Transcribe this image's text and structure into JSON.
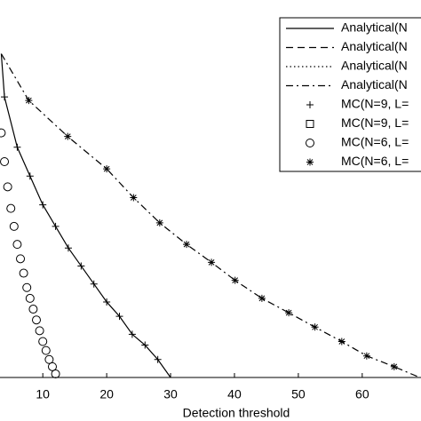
{
  "chart_data": {
    "type": "line",
    "x_label": "Detection threshold",
    "xlim": [
      3.3,
      69.2
    ],
    "ylim": [
      0,
      1
    ],
    "xticks": [
      10,
      20,
      30,
      40,
      50,
      60
    ],
    "series": [
      {
        "name": "Analytical(N",
        "style": "solid",
        "marker": "none",
        "color": "#000000",
        "x": [
          3.5,
          4,
          6,
          8,
          10,
          12,
          14,
          16,
          18,
          20,
          22,
          24,
          26,
          28,
          30
        ],
        "values": [
          0.9,
          0.78,
          0.64,
          0.56,
          0.48,
          0.42,
          0.36,
          0.31,
          0.26,
          0.21,
          0.17,
          0.12,
          0.09,
          0.05,
          0.0
        ]
      },
      {
        "name": "Analytical(N",
        "style": "dashed",
        "marker": "none",
        "color": "#000000",
        "x": [],
        "values": []
      },
      {
        "name": "Analytical(N",
        "style": "dotted",
        "marker": "none",
        "color": "#000000",
        "x": [],
        "values": []
      },
      {
        "name": "Analytical(N",
        "style": "dashdot",
        "marker": "none",
        "color": "#000000",
        "x": [
          3.5,
          7.8,
          13.9,
          20,
          24.2,
          28.3,
          32.5,
          36.4,
          40.1,
          44.3,
          48.5,
          52.6,
          56.8,
          60.7,
          65,
          69
        ],
        "values": [
          0.9,
          0.77,
          0.67,
          0.58,
          0.5,
          0.43,
          0.37,
          0.32,
          0.27,
          0.22,
          0.18,
          0.14,
          0.1,
          0.06,
          0.03,
          0.0
        ]
      },
      {
        "name": "MC(N=9, L=",
        "style": "none",
        "marker": "plus",
        "color": "#000000",
        "x": [
          4,
          6,
          8,
          10,
          12,
          14,
          16,
          18,
          20,
          22,
          24,
          26,
          28
        ],
        "values": [
          0.78,
          0.64,
          0.56,
          0.48,
          0.42,
          0.36,
          0.31,
          0.26,
          0.21,
          0.17,
          0.12,
          0.09,
          0.05
        ]
      },
      {
        "name": "MC(N=9, L=",
        "style": "none",
        "marker": "square",
        "color": "#000000",
        "x": [],
        "values": []
      },
      {
        "name": "MC(N=6, L=",
        "style": "none",
        "marker": "circle",
        "color": "#000000",
        "x": [
          3.5,
          4,
          4.5,
          5,
          5.5,
          6,
          6.5,
          7,
          7.5,
          8,
          8.5,
          9,
          9.5,
          10,
          10.5,
          11,
          11.5,
          12
        ],
        "values": [
          0.68,
          0.6,
          0.53,
          0.47,
          0.42,
          0.37,
          0.33,
          0.29,
          0.25,
          0.22,
          0.19,
          0.16,
          0.13,
          0.1,
          0.075,
          0.05,
          0.03,
          0.01
        ]
      },
      {
        "name": "MC(N=6, L=",
        "style": "none",
        "marker": "star",
        "color": "#000000",
        "x": [
          7.8,
          13.9,
          20,
          24.2,
          28.3,
          32.5,
          36.4,
          40.1,
          44.3,
          48.5,
          52.6,
          56.8,
          60.7,
          65
        ],
        "values": [
          0.77,
          0.67,
          0.58,
          0.5,
          0.43,
          0.37,
          0.32,
          0.27,
          0.22,
          0.18,
          0.14,
          0.1,
          0.06,
          0.03
        ]
      }
    ]
  }
}
